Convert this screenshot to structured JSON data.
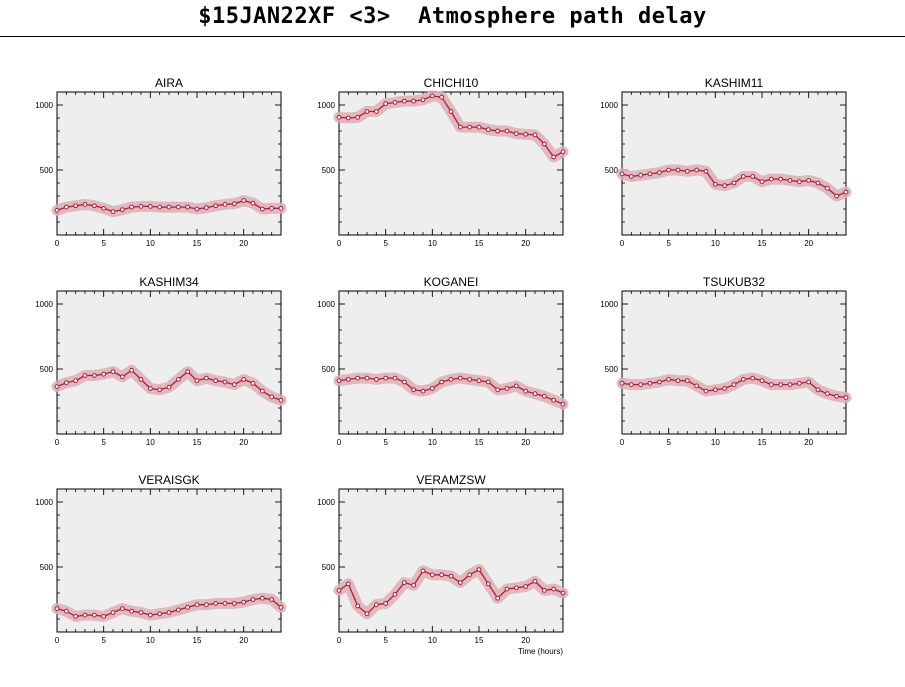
{
  "title": "$15JAN22XF <3>  Atmosphere path delay",
  "colors": {
    "panel": "#eeeeee",
    "line": "#c0143c",
    "band": "#d8b0b4",
    "axis": "#000000"
  },
  "chart_data": [
    {
      "type": "line",
      "title": "AIRA",
      "xlim": [
        0,
        24
      ],
      "ylim": [
        0,
        1100
      ],
      "xticks": [
        0,
        5,
        10,
        15,
        20
      ],
      "yticks": [
        500,
        1000
      ],
      "series": [
        {
          "x": [
            0,
            1,
            2,
            3,
            4,
            5,
            6,
            7,
            8,
            9,
            10,
            11,
            12,
            13,
            14,
            15,
            16,
            17,
            18,
            19,
            20,
            21,
            22,
            23,
            24
          ],
          "y": [
            190,
            215,
            225,
            235,
            225,
            205,
            180,
            195,
            215,
            220,
            220,
            215,
            215,
            215,
            215,
            200,
            210,
            225,
            235,
            240,
            265,
            245,
            200,
            205,
            205
          ]
        }
      ]
    },
    {
      "type": "line",
      "title": "CHICHI10",
      "xlim": [
        0,
        24
      ],
      "ylim": [
        0,
        1100
      ],
      "xticks": [
        0,
        5,
        10,
        15,
        20
      ],
      "yticks": [
        500,
        1000
      ],
      "series": [
        {
          "x": [
            0,
            1,
            2,
            3,
            4,
            5,
            6,
            7,
            8,
            9,
            10,
            11,
            12,
            13,
            14,
            15,
            16,
            17,
            18,
            19,
            20,
            21,
            22,
            23,
            24
          ],
          "y": [
            905,
            900,
            905,
            950,
            950,
            1010,
            1020,
            1030,
            1030,
            1040,
            1070,
            1060,
            950,
            830,
            830,
            830,
            810,
            800,
            800,
            780,
            775,
            770,
            700,
            600,
            640
          ]
        }
      ]
    },
    {
      "type": "line",
      "title": "KASHIM11",
      "xlim": [
        0,
        24
      ],
      "ylim": [
        0,
        1100
      ],
      "xticks": [
        0,
        5,
        10,
        15,
        20
      ],
      "yticks": [
        500,
        1000
      ],
      "series": [
        {
          "x": [
            0,
            1,
            2,
            3,
            4,
            5,
            6,
            7,
            8,
            9,
            10,
            11,
            12,
            13,
            14,
            15,
            16,
            17,
            18,
            19,
            20,
            21,
            22,
            23,
            24
          ],
          "y": [
            470,
            450,
            460,
            470,
            480,
            500,
            500,
            490,
            500,
            490,
            390,
            380,
            400,
            450,
            450,
            410,
            430,
            430,
            420,
            410,
            420,
            400,
            360,
            300,
            330
          ]
        }
      ]
    },
    {
      "type": "line",
      "title": "KASHIM34",
      "xlim": [
        0,
        24
      ],
      "ylim": [
        0,
        1100
      ],
      "xticks": [
        0,
        5,
        10,
        15,
        20
      ],
      "yticks": [
        500,
        1000
      ],
      "series": [
        {
          "x": [
            0,
            1,
            2,
            3,
            4,
            5,
            6,
            7,
            8,
            9,
            10,
            11,
            12,
            13,
            14,
            15,
            16,
            17,
            18,
            19,
            20,
            21,
            22,
            23,
            24
          ],
          "y": [
            365,
            395,
            410,
            450,
            450,
            460,
            480,
            440,
            490,
            420,
            350,
            340,
            360,
            420,
            480,
            410,
            430,
            410,
            400,
            380,
            420,
            390,
            330,
            285,
            260
          ]
        }
      ]
    },
    {
      "type": "line",
      "title": "KOGANEI",
      "xlim": [
        0,
        24
      ],
      "ylim": [
        0,
        1100
      ],
      "xticks": [
        0,
        5,
        10,
        15,
        20
      ],
      "yticks": [
        500,
        1000
      ],
      "series": [
        {
          "x": [
            0,
            1,
            2,
            3,
            4,
            5,
            6,
            7,
            8,
            9,
            10,
            11,
            12,
            13,
            14,
            15,
            16,
            17,
            18,
            19,
            20,
            21,
            22,
            23,
            24
          ],
          "y": [
            410,
            420,
            430,
            430,
            420,
            430,
            430,
            400,
            340,
            330,
            350,
            400,
            420,
            430,
            420,
            410,
            400,
            340,
            350,
            370,
            330,
            310,
            290,
            260,
            230
          ]
        }
      ]
    },
    {
      "type": "line",
      "title": "TSUKUB32",
      "xlim": [
        0,
        24
      ],
      "ylim": [
        0,
        1100
      ],
      "xticks": [
        0,
        5,
        10,
        15,
        20
      ],
      "yticks": [
        500,
        1000
      ],
      "series": [
        {
          "x": [
            0,
            1,
            2,
            3,
            4,
            5,
            6,
            7,
            8,
            9,
            10,
            11,
            12,
            13,
            14,
            15,
            16,
            17,
            18,
            19,
            20,
            21,
            22,
            23,
            24
          ],
          "y": [
            390,
            380,
            380,
            390,
            400,
            420,
            410,
            410,
            370,
            330,
            340,
            350,
            380,
            420,
            430,
            410,
            380,
            380,
            380,
            390,
            400,
            340,
            310,
            290,
            280
          ]
        }
      ]
    },
    {
      "type": "line",
      "title": "VERAISGK",
      "xlim": [
        0,
        24
      ],
      "ylim": [
        0,
        1100
      ],
      "xticks": [
        0,
        5,
        10,
        15,
        20
      ],
      "yticks": [
        500,
        1000
      ],
      "series": [
        {
          "x": [
            0,
            1,
            2,
            3,
            4,
            5,
            6,
            7,
            8,
            9,
            10,
            11,
            12,
            13,
            14,
            15,
            16,
            17,
            18,
            19,
            20,
            21,
            22,
            23,
            24
          ],
          "y": [
            180,
            160,
            120,
            130,
            130,
            120,
            150,
            180,
            160,
            150,
            130,
            140,
            150,
            170,
            190,
            210,
            210,
            220,
            220,
            220,
            230,
            250,
            260,
            250,
            190
          ]
        }
      ]
    },
    {
      "type": "line",
      "title": "VERAMZSW",
      "xlim": [
        0,
        24
      ],
      "ylim": [
        0,
        1100
      ],
      "xticks": [
        0,
        5,
        10,
        15,
        20
      ],
      "yticks": [
        500,
        1000
      ],
      "xlabel": "Time (hours)",
      "series": [
        {
          "x": [
            0,
            1,
            2,
            3,
            4,
            5,
            6,
            7,
            8,
            9,
            10,
            11,
            12,
            13,
            14,
            15,
            16,
            17,
            18,
            19,
            20,
            21,
            22,
            23,
            24
          ],
          "y": [
            320,
            370,
            200,
            140,
            210,
            220,
            290,
            380,
            360,
            470,
            440,
            440,
            430,
            380,
            440,
            480,
            370,
            260,
            330,
            340,
            350,
            390,
            320,
            330,
            300
          ]
        }
      ]
    }
  ]
}
